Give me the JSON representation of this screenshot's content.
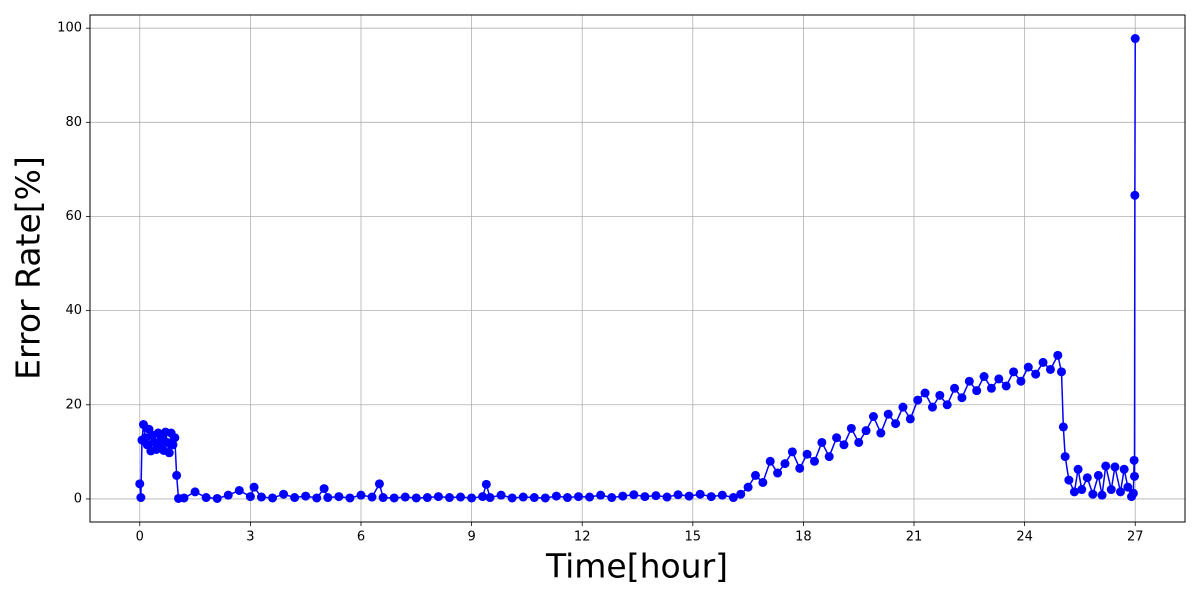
{
  "chart_data": {
    "type": "line",
    "xlabel": "Time[hour]",
    "ylabel": "Error Rate[%]",
    "color": "#0000ff",
    "grid": true,
    "markers": true,
    "xlim": [
      -1.35,
      28.35
    ],
    "ylim": [
      -4.9,
      102.8
    ],
    "xticks": [
      0,
      3,
      6,
      9,
      12,
      15,
      18,
      21,
      24,
      27
    ],
    "yticks": [
      0,
      20,
      40,
      60,
      80,
      100
    ],
    "x": [
      0,
      0.03,
      0.06,
      0.1,
      0.15,
      0.2,
      0.25,
      0.3,
      0.35,
      0.4,
      0.45,
      0.5,
      0.55,
      0.6,
      0.65,
      0.7,
      0.75,
      0.8,
      0.85,
      0.9,
      0.95,
      1.0,
      1.05,
      1.2,
      1.5,
      1.8,
      2.1,
      2.4,
      2.7,
      3.0,
      3.1,
      3.3,
      3.6,
      3.9,
      4.2,
      4.5,
      4.8,
      5.0,
      5.1,
      5.4,
      5.7,
      6.0,
      6.3,
      6.5,
      6.6,
      6.9,
      7.2,
      7.5,
      7.8,
      8.1,
      8.4,
      8.7,
      9.0,
      9.3,
      9.4,
      9.5,
      9.8,
      10.1,
      10.4,
      10.7,
      11.0,
      11.3,
      11.6,
      11.9,
      12.2,
      12.5,
      12.8,
      13.1,
      13.4,
      13.7,
      14.0,
      14.3,
      14.6,
      14.9,
      15.2,
      15.5,
      15.8,
      16.1,
      16.3,
      16.5,
      16.7,
      16.9,
      17.1,
      17.3,
      17.5,
      17.7,
      17.9,
      18.1,
      18.3,
      18.5,
      18.7,
      18.9,
      19.1,
      19.3,
      19.5,
      19.7,
      19.9,
      20.1,
      20.3,
      20.5,
      20.7,
      20.9,
      21.1,
      21.3,
      21.5,
      21.7,
      21.9,
      22.1,
      22.3,
      22.5,
      22.7,
      22.9,
      23.1,
      23.3,
      23.5,
      23.7,
      23.9,
      24.1,
      24.3,
      24.5,
      24.7,
      24.9,
      25.0,
      25.05,
      25.1,
      25.2,
      25.35,
      25.45,
      25.55,
      25.7,
      25.85,
      26.0,
      26.1,
      26.2,
      26.35,
      26.45,
      26.6,
      26.7,
      26.8,
      26.9,
      26.95,
      26.97,
      26.98,
      26.99,
      27.0
    ],
    "values": [
      3.2,
      0.3,
      12.5,
      15.8,
      13,
      11.5,
      14.8,
      10.2,
      13.5,
      12,
      10.5,
      14,
      11,
      12.8,
      10.3,
      14.2,
      12,
      9.8,
      14,
      11.5,
      13,
      5,
      0.1,
      0.2,
      1.5,
      0.3,
      0.1,
      0.8,
      1.8,
      0.5,
      2.5,
      0.4,
      0.2,
      1.0,
      0.3,
      0.6,
      0.2,
      2.2,
      0.3,
      0.5,
      0.2,
      0.8,
      0.4,
      3.2,
      0.3,
      0.2,
      0.4,
      0.2,
      0.3,
      0.5,
      0.3,
      0.4,
      0.2,
      0.5,
      3.1,
      0.3,
      0.8,
      0.2,
      0.4,
      0.3,
      0.2,
      0.6,
      0.3,
      0.5,
      0.4,
      0.8,
      0.3,
      0.6,
      0.9,
      0.5,
      0.7,
      0.4,
      0.9,
      0.6,
      1.0,
      0.5,
      0.8,
      0.3,
      1.0,
      2.5,
      5,
      3.5,
      8,
      5.5,
      7.5,
      10,
      6.5,
      9.5,
      8,
      12,
      9,
      13,
      11.5,
      15,
      12,
      14.5,
      17.5,
      14,
      18,
      16,
      19.5,
      17,
      21,
      22.5,
      19.5,
      22,
      20,
      23.5,
      21.5,
      25,
      23,
      26,
      23.5,
      25.5,
      24,
      27,
      25,
      28,
      26.5,
      29,
      27.5,
      30.5,
      27,
      15.3,
      9,
      4,
      1.5,
      6.3,
      2,
      4.5,
      1,
      5,
      0.8,
      7,
      2,
      6.8,
      1.5,
      6.3,
      2.5,
      0.5,
      1.2,
      8.2,
      4.8,
      64.5,
      97.8
    ]
  }
}
